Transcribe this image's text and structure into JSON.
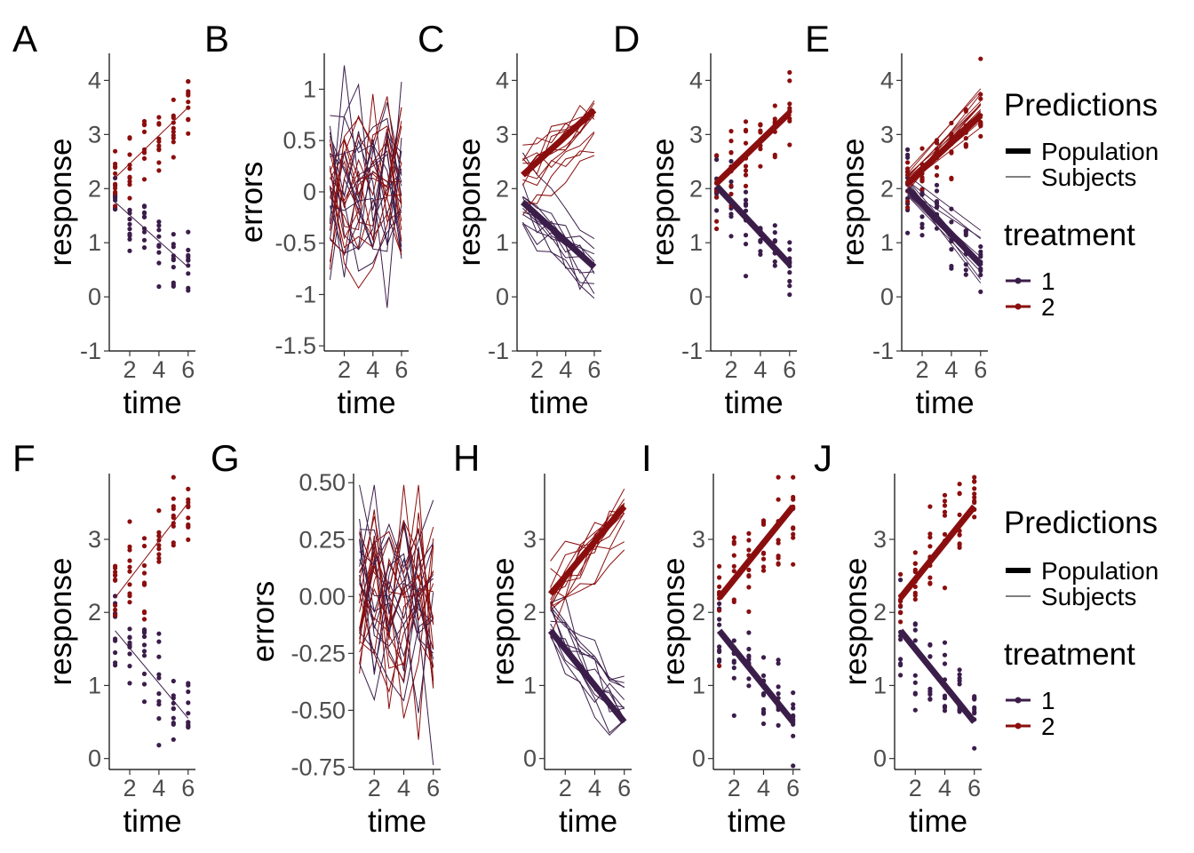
{
  "colors": {
    "treatment1": "#3b1d4a",
    "treatment2": "#8b0e0e"
  },
  "legend": {
    "predictions_title": "Predictions",
    "population_label": "Population",
    "subjects_label": "Subjects",
    "treatment_title": "treatment",
    "treatment_levels": [
      "1",
      "2"
    ]
  },
  "chart_data": [
    {
      "panel": "A",
      "type": "scatter",
      "xlabel": "time",
      "ylabel": "response",
      "ylim": [
        -1,
        4.5
      ],
      "yticks": [
        -1,
        0,
        1,
        2,
        3,
        4
      ],
      "xticks": [
        2,
        4,
        6
      ],
      "xlim": [
        0.6,
        6.5
      ],
      "points": "random scatter around fitted lines",
      "population_lines": [],
      "subject_lines": [
        {
          "treatment": "1",
          "x": [
            1,
            6
          ],
          "y": [
            1.75,
            0.55
          ]
        },
        {
          "treatment": "2",
          "x": [
            1,
            6
          ],
          "y": [
            2.2,
            3.5
          ]
        }
      ]
    },
    {
      "panel": "B",
      "type": "line",
      "xlabel": "time",
      "ylabel": "errors",
      "ylim": [
        -1.55,
        1.35
      ],
      "yticks": [
        -1.5,
        -1.0,
        -0.5,
        0.0,
        0.5,
        1.0
      ],
      "xticks": [
        2,
        4,
        6
      ],
      "xlim": [
        0.6,
        6.5
      ]
    },
    {
      "panel": "C",
      "type": "line",
      "xlabel": "time",
      "ylabel": "response",
      "ylim": [
        -1,
        4.5
      ],
      "yticks": [
        -1,
        0,
        1,
        2,
        3,
        4
      ],
      "xticks": [
        2,
        4,
        6
      ],
      "xlim": [
        0.6,
        6.5
      ],
      "population_lines": [
        {
          "treatment": "1",
          "x": [
            1,
            6
          ],
          "y": [
            1.75,
            0.55
          ]
        },
        {
          "treatment": "2",
          "x": [
            1,
            6
          ],
          "y": [
            2.25,
            3.45
          ]
        }
      ]
    },
    {
      "panel": "D",
      "type": "scatter",
      "xlabel": "time",
      "ylabel": "response",
      "ylim": [
        -1,
        4.5
      ],
      "yticks": [
        -1,
        0,
        1,
        2,
        3,
        4
      ],
      "xticks": [
        2,
        4,
        6
      ],
      "xlim": [
        0.6,
        6.5
      ],
      "population_lines": [
        {
          "treatment": "1",
          "x": [
            1,
            6
          ],
          "y": [
            2.05,
            0.6
          ]
        },
        {
          "treatment": "2",
          "x": [
            1,
            6
          ],
          "y": [
            2.1,
            3.4
          ]
        }
      ]
    },
    {
      "panel": "E",
      "type": "scatter",
      "xlabel": "time",
      "ylabel": "response",
      "ylim": [
        -1,
        4.5
      ],
      "yticks": [
        -1,
        0,
        1,
        2,
        3,
        4
      ],
      "xticks": [
        2,
        4,
        6
      ],
      "xlim": [
        0.6,
        6.5
      ],
      "population_lines": [
        {
          "treatment": "1",
          "x": [
            1,
            6
          ],
          "y": [
            2.0,
            0.6
          ]
        },
        {
          "treatment": "2",
          "x": [
            1,
            6
          ],
          "y": [
            2.1,
            3.35
          ]
        }
      ]
    },
    {
      "panel": "F",
      "type": "scatter",
      "xlabel": "time",
      "ylabel": "response",
      "ylim": [
        -0.15,
        3.9
      ],
      "yticks": [
        0,
        1,
        2,
        3
      ],
      "xticks": [
        2,
        4,
        6
      ],
      "xlim": [
        0.6,
        6.5
      ],
      "population_lines": [],
      "subject_lines": [
        {
          "treatment": "1",
          "x": [
            1,
            6
          ],
          "y": [
            1.75,
            0.55
          ]
        },
        {
          "treatment": "2",
          "x": [
            1,
            6
          ],
          "y": [
            2.2,
            3.5
          ]
        }
      ]
    },
    {
      "panel": "G",
      "type": "line",
      "xlabel": "time",
      "ylabel": "errors",
      "ylim": [
        -0.76,
        0.54
      ],
      "yticks": [
        -0.75,
        -0.5,
        -0.25,
        0.0,
        0.25,
        0.5
      ],
      "ytick_labels": [
        "-0.75",
        "-0.50",
        "-0.25",
        "0.00",
        "0.25",
        "0.50"
      ],
      "xticks": [
        2,
        4,
        6
      ],
      "xlim": [
        0.6,
        6.5
      ]
    },
    {
      "panel": "H",
      "type": "line",
      "xlabel": "time",
      "ylabel": "response",
      "ylim": [
        -0.15,
        3.9
      ],
      "yticks": [
        0,
        1,
        2,
        3
      ],
      "xticks": [
        2,
        4,
        6
      ],
      "xlim": [
        0.6,
        6.5
      ],
      "population_lines": [
        {
          "treatment": "1",
          "x": [
            1,
            6
          ],
          "y": [
            1.75,
            0.5
          ]
        },
        {
          "treatment": "2",
          "x": [
            1,
            6
          ],
          "y": [
            2.25,
            3.45
          ]
        }
      ]
    },
    {
      "panel": "I",
      "type": "scatter",
      "xlabel": "time",
      "ylabel": "response",
      "ylim": [
        -0.15,
        3.9
      ],
      "yticks": [
        0,
        1,
        2,
        3
      ],
      "xticks": [
        2,
        4,
        6
      ],
      "xlim": [
        0.6,
        6.5
      ],
      "population_lines": [
        {
          "treatment": "1",
          "x": [
            1,
            6
          ],
          "y": [
            1.75,
            0.5
          ]
        },
        {
          "treatment": "2",
          "x": [
            1,
            6
          ],
          "y": [
            2.2,
            3.45
          ]
        }
      ]
    },
    {
      "panel": "J",
      "type": "scatter",
      "xlabel": "time",
      "ylabel": "response",
      "ylim": [
        -0.15,
        3.9
      ],
      "yticks": [
        0,
        1,
        2,
        3
      ],
      "xticks": [
        2,
        4,
        6
      ],
      "xlim": [
        0.6,
        6.5
      ],
      "population_lines": [
        {
          "treatment": "1",
          "x": [
            1,
            6
          ],
          "y": [
            1.75,
            0.5
          ]
        },
        {
          "treatment": "2",
          "x": [
            1,
            6
          ],
          "y": [
            2.2,
            3.45
          ]
        }
      ]
    }
  ]
}
